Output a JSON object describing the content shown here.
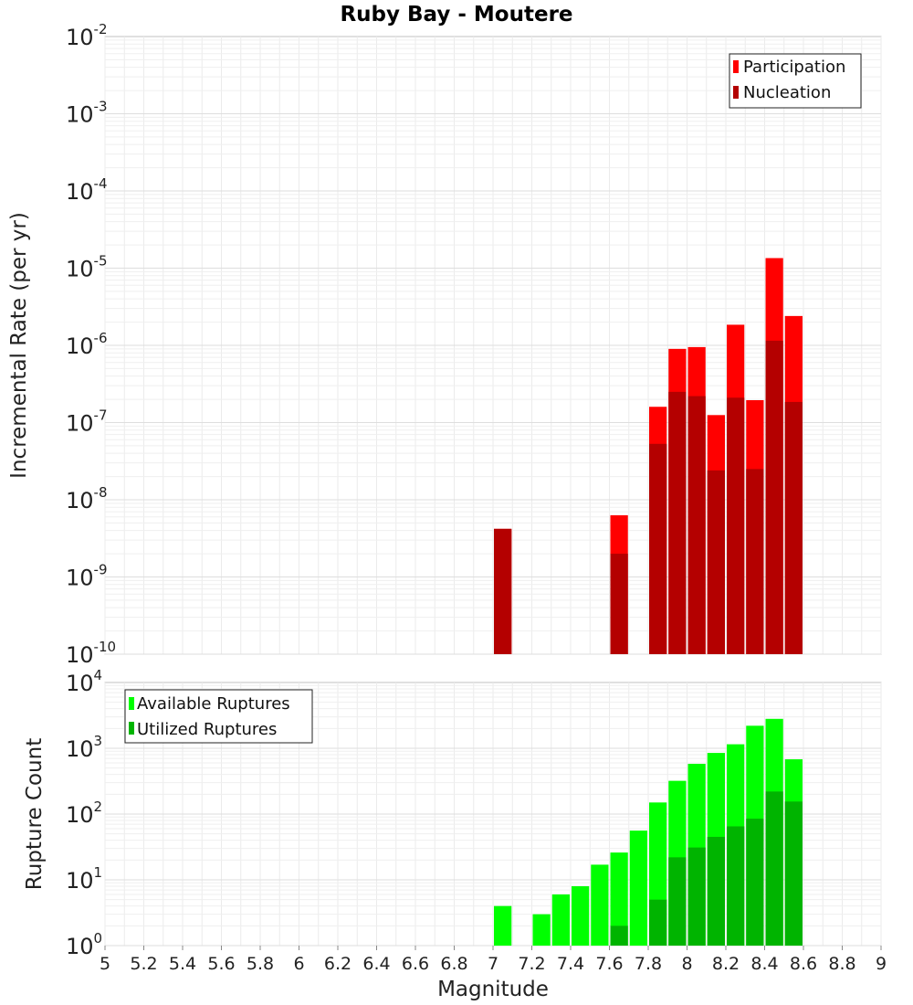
{
  "chart_data": [
    {
      "type": "bar",
      "title": "Ruby Bay - Moutere",
      "ylabel": "Incremental Rate (per yr)",
      "xlabel": "",
      "yscale": "log",
      "ylim_exponents": [
        -10,
        -2
      ],
      "xlim": [
        5,
        9
      ],
      "grid": true,
      "legend_position": "top-right",
      "bar_width": 0.1,
      "x": [
        7.05,
        7.65,
        7.85,
        7.95,
        8.05,
        8.15,
        8.25,
        8.35,
        8.45,
        8.55
      ],
      "series": [
        {
          "name": "Participation",
          "color": "#ff0000",
          "values": [
            4.2e-09,
            6.3e-09,
            1.6e-07,
            9e-07,
            9.5e-07,
            1.25e-07,
            1.85e-06,
            1.95e-07,
            1.35e-05,
            2.4e-06
          ]
        },
        {
          "name": "Nucleation",
          "color": "#b40000",
          "values": [
            4.2e-09,
            2e-09,
            5.3e-08,
            2.5e-07,
            2.2e-07,
            2.4e-08,
            2.1e-07,
            2.5e-08,
            1.15e-06,
            1.85e-07
          ]
        }
      ]
    },
    {
      "type": "bar",
      "title": "",
      "ylabel": "Rupture Count",
      "xlabel": "Magnitude",
      "yscale": "log",
      "ylim_exponents": [
        0,
        4
      ],
      "xlim": [
        5,
        9
      ],
      "grid": true,
      "legend_position": "top-left",
      "bar_width": 0.1,
      "x": [
        7.05,
        7.25,
        7.35,
        7.45,
        7.55,
        7.65,
        7.75,
        7.85,
        7.95,
        8.05,
        8.15,
        8.25,
        8.35,
        8.45,
        8.55
      ],
      "x_ticks": [
        "5",
        "5.2",
        "5.4",
        "5.6",
        "5.8",
        "6",
        "6.2",
        "6.4",
        "6.6",
        "6.8",
        "7",
        "7.2",
        "7.4",
        "7.6",
        "7.8",
        "8",
        "8.2",
        "8.4",
        "8.6",
        "8.8",
        "9"
      ],
      "series": [
        {
          "name": "Available Ruptures",
          "color": "#00ff00",
          "values": [
            4,
            3,
            6,
            8,
            17,
            26,
            56,
            150,
            320,
            580,
            850,
            1150,
            2200,
            2800,
            680
          ]
        },
        {
          "name": "Utilized Ruptures",
          "color": "#00b400",
          "values": [
            1,
            0,
            0,
            0,
            0,
            2,
            0,
            5,
            22,
            31,
            45,
            65,
            85,
            220,
            155
          ]
        }
      ]
    }
  ]
}
